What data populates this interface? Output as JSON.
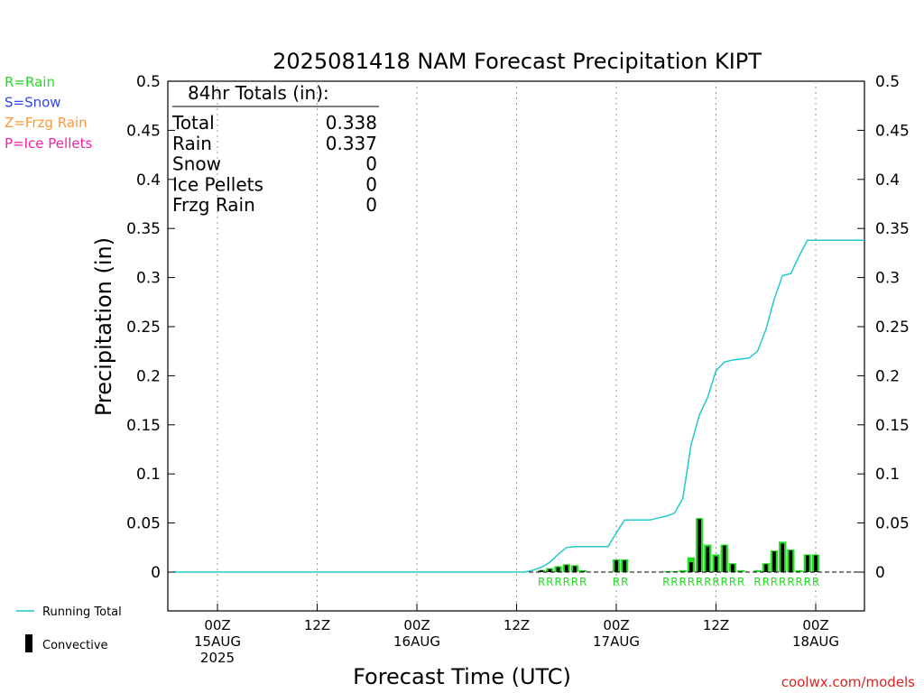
{
  "chart_data": {
    "type": "bar",
    "title": "2025081418 NAM Forecast Precipitation KIPT",
    "xlabel": "Forecast Time (UTC)",
    "ylabel": "Precipitation (in)",
    "ylim": [
      0,
      0.5
    ],
    "y_ticks": [
      "0",
      "0.05",
      "0.1",
      "0.15",
      "0.2",
      "0.25",
      "0.3",
      "0.35",
      "0.4",
      "0.45",
      "0.5"
    ],
    "x_ticks": [
      {
        "hour": 6,
        "line1": "00Z",
        "line2": "15AUG",
        "line3": "2025"
      },
      {
        "hour": 18,
        "line1": "12Z",
        "line2": "",
        "line3": ""
      },
      {
        "hour": 30,
        "line1": "00Z",
        "line2": "16AUG",
        "line3": ""
      },
      {
        "hour": 42,
        "line1": "12Z",
        "line2": "",
        "line3": ""
      },
      {
        "hour": 54,
        "line1": "00Z",
        "line2": "17AUG",
        "line3": ""
      },
      {
        "hour": 66,
        "line1": "12Z",
        "line2": "",
        "line3": ""
      },
      {
        "hour": 78,
        "line1": "00Z",
        "line2": "18AUG",
        "line3": ""
      }
    ],
    "x_range_hours": [
      0,
      84
    ],
    "grid": "vertical dotted at tick hours",
    "totals_box": {
      "header": "84hr Totals (in):",
      "rows": [
        {
          "label": "Total",
          "value": "0.338"
        },
        {
          "label": "Rain",
          "value": "0.337"
        },
        {
          "label": "Snow",
          "value": "0"
        },
        {
          "label": "Ice Pellets",
          "value": "0"
        },
        {
          "label": "Frzg Rain",
          "value": "0"
        }
      ]
    },
    "type_legend": [
      {
        "text": "R=Rain",
        "color": "#22dd22"
      },
      {
        "text": "S=Snow",
        "color": "#3344ee"
      },
      {
        "text": "Z=Frzg Rain",
        "color": "#ff9933"
      },
      {
        "text": "P=Ice Pellets",
        "color": "#ee22aa"
      }
    ],
    "series_legend": [
      {
        "name": "Running Total",
        "color": "#22c8d0"
      },
      {
        "name": "Convective",
        "color": "#000000"
      }
    ],
    "series": [
      {
        "name": "Rain",
        "color": "#22dd22",
        "points": [
          {
            "hour": 45,
            "value": 0.002,
            "type": "R"
          },
          {
            "hour": 46,
            "value": 0.004,
            "type": "R"
          },
          {
            "hour": 47,
            "value": 0.006,
            "type": "R"
          },
          {
            "hour": 48,
            "value": 0.008,
            "type": "R"
          },
          {
            "hour": 49,
            "value": 0.007,
            "type": "R"
          },
          {
            "hour": 50,
            "value": 0.002,
            "type": "R"
          },
          {
            "hour": 54,
            "value": 0.013,
            "type": "R"
          },
          {
            "hour": 55,
            "value": 0.013,
            "type": "R"
          },
          {
            "hour": 60,
            "value": 0.001,
            "type": "R"
          },
          {
            "hour": 61,
            "value": 0.001,
            "type": "R"
          },
          {
            "hour": 62,
            "value": 0.002,
            "type": "R"
          },
          {
            "hour": 63,
            "value": 0.015,
            "type": "R"
          },
          {
            "hour": 64,
            "value": 0.055,
            "type": "R"
          },
          {
            "hour": 65,
            "value": 0.028,
            "type": "R"
          },
          {
            "hour": 66,
            "value": 0.018,
            "type": "R"
          },
          {
            "hour": 67,
            "value": 0.028,
            "type": "R"
          },
          {
            "hour": 68,
            "value": 0.009,
            "type": "R"
          },
          {
            "hour": 69,
            "value": 0.002,
            "type": "R"
          },
          {
            "hour": 71,
            "value": 0.002,
            "type": "R"
          },
          {
            "hour": 72,
            "value": 0.009,
            "type": "R"
          },
          {
            "hour": 73,
            "value": 0.022,
            "type": "R"
          },
          {
            "hour": 74,
            "value": 0.031,
            "type": "R"
          },
          {
            "hour": 75,
            "value": 0.023,
            "type": "R"
          },
          {
            "hour": 76,
            "value": 0.002,
            "type": "R"
          },
          {
            "hour": 77,
            "value": 0.018,
            "type": "R"
          },
          {
            "hour": 78,
            "value": 0.018,
            "type": "R"
          }
        ]
      },
      {
        "name": "Convective",
        "color": "#000000",
        "points": [
          {
            "hour": 45,
            "value": 0.002
          },
          {
            "hour": 46,
            "value": 0.003
          },
          {
            "hour": 47,
            "value": 0.005
          },
          {
            "hour": 48,
            "value": 0.007
          },
          {
            "hour": 49,
            "value": 0.006
          },
          {
            "hour": 50,
            "value": 0.001
          },
          {
            "hour": 54,
            "value": 0.012
          },
          {
            "hour": 55,
            "value": 0.012
          },
          {
            "hour": 63,
            "value": 0.01
          },
          {
            "hour": 64,
            "value": 0.054
          },
          {
            "hour": 65,
            "value": 0.026
          },
          {
            "hour": 66,
            "value": 0.016
          },
          {
            "hour": 67,
            "value": 0.027
          },
          {
            "hour": 68,
            "value": 0.008
          },
          {
            "hour": 72,
            "value": 0.008
          },
          {
            "hour": 73,
            "value": 0.021
          },
          {
            "hour": 74,
            "value": 0.029
          },
          {
            "hour": 75,
            "value": 0.022
          },
          {
            "hour": 77,
            "value": 0.017
          },
          {
            "hour": 78,
            "value": 0.017
          }
        ]
      },
      {
        "name": "Running Total",
        "color": "#22c8d0",
        "points": [
          {
            "hour": 0,
            "value": 0
          },
          {
            "hour": 43,
            "value": 0
          },
          {
            "hour": 44,
            "value": 0.002
          },
          {
            "hour": 45,
            "value": 0.005
          },
          {
            "hour": 46,
            "value": 0.01
          },
          {
            "hour": 47,
            "value": 0.018
          },
          {
            "hour": 48,
            "value": 0.025
          },
          {
            "hour": 49,
            "value": 0.026
          },
          {
            "hour": 50,
            "value": 0.026
          },
          {
            "hour": 53,
            "value": 0.026
          },
          {
            "hour": 54,
            "value": 0.04
          },
          {
            "hour": 55,
            "value": 0.053
          },
          {
            "hour": 58,
            "value": 0.053
          },
          {
            "hour": 59,
            "value": 0.055
          },
          {
            "hour": 60,
            "value": 0.057
          },
          {
            "hour": 61,
            "value": 0.06
          },
          {
            "hour": 62,
            "value": 0.075
          },
          {
            "hour": 63,
            "value": 0.13
          },
          {
            "hour": 64,
            "value": 0.16
          },
          {
            "hour": 65,
            "value": 0.178
          },
          {
            "hour": 66,
            "value": 0.205
          },
          {
            "hour": 67,
            "value": 0.214
          },
          {
            "hour": 68,
            "value": 0.216
          },
          {
            "hour": 69,
            "value": 0.217
          },
          {
            "hour": 70,
            "value": 0.218
          },
          {
            "hour": 71,
            "value": 0.225
          },
          {
            "hour": 72,
            "value": 0.247
          },
          {
            "hour": 73,
            "value": 0.278
          },
          {
            "hour": 74,
            "value": 0.302
          },
          {
            "hour": 75,
            "value": 0.304
          },
          {
            "hour": 76,
            "value": 0.322
          },
          {
            "hour": 77,
            "value": 0.338
          },
          {
            "hour": 84,
            "value": 0.338
          }
        ]
      }
    ]
  },
  "credit": "coolwx.com/models"
}
